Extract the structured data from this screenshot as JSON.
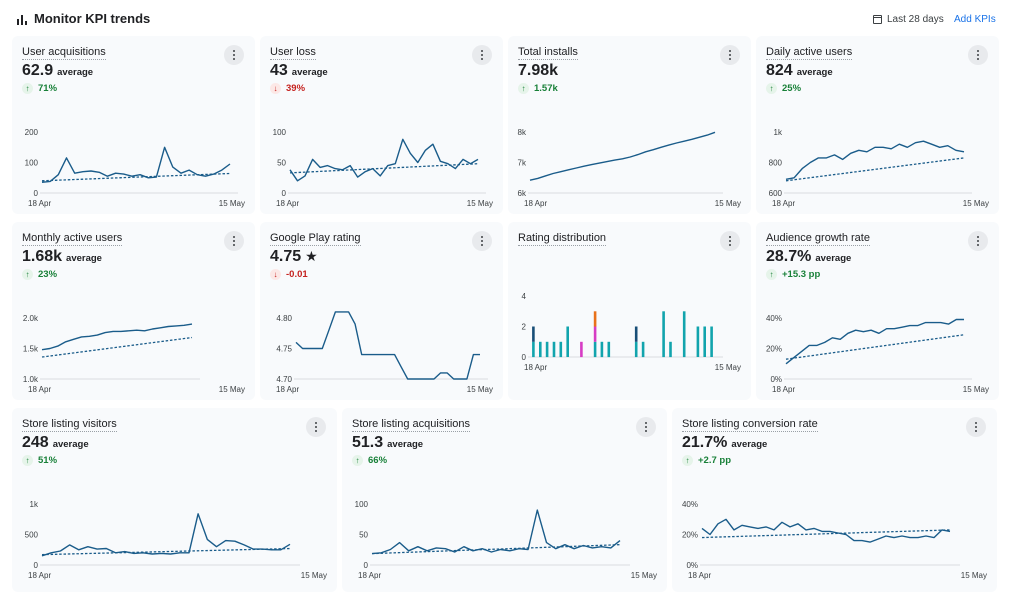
{
  "header": {
    "title": "Monitor KPI trends",
    "date_range": "Last 28 days",
    "add_kpis": "Add KPIs"
  },
  "colors": {
    "series": "#1a5c8a",
    "bar_teal": "#12a4ad",
    "bar_navy": "#184e77",
    "bar_magenta": "#d63cc4",
    "bar_orange": "#e8711a",
    "positive": "#188038",
    "negative": "#c5221f"
  },
  "cards": [
    {
      "title": "User acquisitions",
      "value": "62.9",
      "unit": "average",
      "change": "71%",
      "direction": "up",
      "chart_data": {
        "type": "line",
        "x_start": "18 Apr",
        "x_end": "15 May",
        "ylim": [
          0,
          200
        ],
        "yticks": [
          "0",
          "100",
          "200"
        ],
        "values": [
          35,
          38,
          60,
          115,
          65,
          70,
          72,
          68,
          55,
          65,
          62,
          55,
          60,
          50,
          52,
          150,
          85,
          65,
          75,
          60,
          55,
          62,
          75,
          95
        ],
        "trend": [
          40,
          64
        ]
      }
    },
    {
      "title": "User loss",
      "value": "43",
      "unit": "average",
      "change": "39%",
      "direction": "down",
      "chart_data": {
        "type": "line",
        "x_start": "18 Apr",
        "x_end": "15 May",
        "ylim": [
          0,
          100
        ],
        "yticks": [
          "0",
          "50",
          "100"
        ],
        "values": [
          38,
          20,
          28,
          55,
          42,
          45,
          40,
          38,
          45,
          26,
          35,
          40,
          28,
          45,
          48,
          88,
          65,
          50,
          70,
          80,
          52,
          48,
          40,
          55,
          48,
          55
        ],
        "trend": [
          33,
          48
        ]
      }
    },
    {
      "title": "Total installs",
      "value": "7.98k",
      "unit": "",
      "change": "1.57k",
      "direction": "up",
      "chart_data": {
        "type": "line",
        "x_start": "18 Apr",
        "x_end": "15 May",
        "ylim": [
          6000,
          8000
        ],
        "yticks": [
          "6k",
          "7k",
          "8k"
        ],
        "values": [
          6420,
          6480,
          6560,
          6640,
          6700,
          6760,
          6820,
          6880,
          6930,
          6980,
          7030,
          7080,
          7120,
          7180,
          7260,
          7350,
          7420,
          7500,
          7570,
          7640,
          7700,
          7760,
          7830,
          7900,
          7990
        ]
      }
    },
    {
      "title": "Daily active users",
      "value": "824",
      "unit": "average",
      "change": "25%",
      "direction": "up",
      "chart_data": {
        "type": "line",
        "x_start": "18 Apr",
        "x_end": "15 May",
        "ylim": [
          600,
          1000
        ],
        "yticks": [
          "600",
          "800",
          "1k"
        ],
        "values": [
          690,
          700,
          760,
          800,
          830,
          830,
          850,
          820,
          860,
          880,
          870,
          900,
          900,
          890,
          920,
          900,
          930,
          940,
          920,
          900,
          910,
          880,
          870
        ],
        "trend": [
          680,
          830
        ]
      }
    },
    {
      "title": "Monthly active users",
      "value": "1.68k",
      "unit": "average",
      "change": "23%",
      "direction": "up",
      "chart_data": {
        "type": "line",
        "x_start": "18 Apr",
        "x_end": "15 May",
        "ylim": [
          1000,
          2000
        ],
        "yticks": [
          "1.0k",
          "1.5k",
          "2.0k"
        ],
        "values": [
          1480,
          1500,
          1540,
          1610,
          1650,
          1690,
          1700,
          1720,
          1760,
          1780,
          1780,
          1790,
          1800,
          1790,
          1820,
          1840,
          1860,
          1870,
          1880,
          1900
        ],
        "trend": [
          1360,
          1680
        ]
      }
    },
    {
      "title": "Google Play rating",
      "value": "4.75",
      "unit": "★",
      "change": "-0.01",
      "direction": "down",
      "chart_data": {
        "type": "line",
        "x_start": "18 Apr",
        "x_end": "15 May",
        "ylim": [
          4.7,
          4.8
        ],
        "yticks": [
          "4.70",
          "4.75",
          "4.80"
        ],
        "values": [
          4.76,
          4.75,
          4.75,
          4.75,
          4.75,
          4.78,
          4.81,
          4.81,
          4.81,
          4.79,
          4.74,
          4.74,
          4.74,
          4.74,
          4.74,
          4.74,
          4.72,
          4.7,
          4.7,
          4.7,
          4.7,
          4.7,
          4.71,
          4.71,
          4.7,
          4.7,
          4.7,
          4.74,
          4.74
        ]
      }
    },
    {
      "title": "Rating distribution",
      "value": "",
      "unit": "",
      "change": "",
      "direction": "",
      "chart_data": {
        "type": "bar",
        "x_start": "18 Apr",
        "x_end": "15 May",
        "ylim": [
          0,
          4
        ],
        "yticks": [
          "0",
          "2",
          "4"
        ],
        "stacks": [
          [
            {
              "v": 1,
              "c": "bar_teal"
            },
            {
              "v": 1,
              "c": "bar_navy"
            }
          ],
          [
            {
              "v": 1,
              "c": "bar_teal"
            }
          ],
          [
            {
              "v": 1,
              "c": "bar_teal"
            }
          ],
          [
            {
              "v": 1,
              "c": "bar_teal"
            }
          ],
          [
            {
              "v": 1,
              "c": "bar_teal"
            }
          ],
          [
            {
              "v": 2,
              "c": "bar_teal"
            }
          ],
          [],
          [
            {
              "v": 1,
              "c": "bar_magenta"
            }
          ],
          [],
          [
            {
              "v": 1,
              "c": "bar_teal"
            },
            {
              "v": 1,
              "c": "bar_magenta"
            },
            {
              "v": 1,
              "c": "bar_orange"
            }
          ],
          [
            {
              "v": 1,
              "c": "bar_teal"
            }
          ],
          [
            {
              "v": 1,
              "c": "bar_teal"
            }
          ],
          [],
          [],
          [],
          [
            {
              "v": 1,
              "c": "bar_teal"
            },
            {
              "v": 1,
              "c": "bar_navy"
            }
          ],
          [
            {
              "v": 1,
              "c": "bar_teal"
            }
          ],
          [],
          [],
          [
            {
              "v": 3,
              "c": "bar_teal"
            }
          ],
          [
            {
              "v": 1,
              "c": "bar_teal"
            }
          ],
          [],
          [
            {
              "v": 3,
              "c": "bar_teal"
            }
          ],
          [],
          [
            {
              "v": 2,
              "c": "bar_teal"
            }
          ],
          [
            {
              "v": 2,
              "c": "bar_teal"
            }
          ],
          [
            {
              "v": 2,
              "c": "bar_teal"
            }
          ]
        ]
      }
    },
    {
      "title": "Audience growth rate",
      "value": "28.7%",
      "unit": "average",
      "change": "+15.3 pp",
      "direction": "up",
      "chart_data": {
        "type": "line",
        "x_start": "18 Apr",
        "x_end": "15 May",
        "ylim": [
          0,
          40
        ],
        "yticks": [
          "0%",
          "20%",
          "40%"
        ],
        "values": [
          10,
          14,
          18,
          22,
          22,
          24,
          27,
          26,
          30,
          32,
          31,
          32,
          30,
          33,
          33,
          34,
          35,
          35,
          37,
          37,
          37,
          36,
          39,
          39
        ],
        "trend": [
          13,
          29
        ]
      }
    },
    {
      "title": "Store listing visitors",
      "value": "248",
      "unit": "average",
      "change": "51%",
      "direction": "up",
      "chart_data": {
        "type": "line",
        "x_start": "18 Apr",
        "x_end": "15 May",
        "ylim": [
          0,
          1000
        ],
        "yticks": [
          "0",
          "500",
          "1k"
        ],
        "values": [
          150,
          200,
          230,
          330,
          250,
          300,
          260,
          270,
          200,
          220,
          190,
          200,
          180,
          190,
          180,
          200,
          200,
          840,
          420,
          300,
          400,
          390,
          330,
          260,
          260,
          250,
          250,
          340
        ],
        "trend": [
          170,
          270
        ]
      }
    },
    {
      "title": "Store listing acquisitions",
      "value": "51.3",
      "unit": "average",
      "change": "66%",
      "direction": "up",
      "chart_data": {
        "type": "line",
        "x_start": "18 Apr",
        "x_end": "15 May",
        "ylim": [
          0,
          150
        ],
        "yticks": [
          "0",
          "50",
          "100"
        ],
        "values": [
          28,
          30,
          38,
          55,
          35,
          45,
          35,
          42,
          40,
          32,
          45,
          35,
          40,
          32,
          38,
          35,
          40,
          38,
          135,
          55,
          40,
          50,
          40,
          48,
          42,
          45,
          42,
          60
        ],
        "trend": [
          28,
          50
        ]
      }
    },
    {
      "title": "Store listing conversion rate",
      "value": "21.7%",
      "unit": "average",
      "change": "+2.7 pp",
      "direction": "up",
      "chart_data": {
        "type": "line",
        "x_start": "18 Apr",
        "x_end": "15 May",
        "ylim": [
          0,
          40
        ],
        "yticks": [
          "0%",
          "20%",
          "40%"
        ],
        "values": [
          24,
          20,
          27,
          30,
          23,
          26,
          25,
          24,
          25,
          23,
          28,
          25,
          27,
          23,
          24,
          22,
          22,
          21,
          20,
          16,
          16,
          15,
          17,
          19,
          18,
          19,
          18,
          18,
          19,
          18,
          23,
          22
        ],
        "trend": [
          18,
          23
        ]
      }
    }
  ]
}
